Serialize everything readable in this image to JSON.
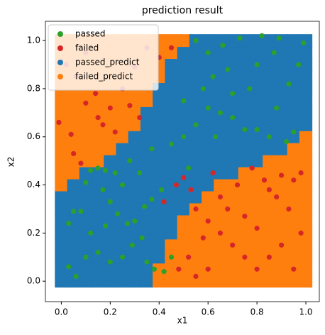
{
  "chart_data": {
    "type": "scatter",
    "title": "prediction result",
    "xlabel": "x1",
    "ylabel": "x2",
    "xlim": [
      -0.065,
      1.055
    ],
    "ylim": [
      -0.085,
      1.08
    ],
    "xticks": [
      {
        "value": 0,
        "label": "0.0"
      },
      0.2,
      0.4,
      0.6,
      0.8,
      {
        "value": 1,
        "label": "1.0"
      }
    ],
    "yticks": [
      {
        "value": 0,
        "label": "0.0"
      },
      0.2,
      0.4,
      0.6,
      0.8,
      {
        "value": 1,
        "label": "1.0"
      }
    ],
    "legend": "upper left",
    "series": [
      {
        "name": "passed",
        "color": "#2ca02c",
        "x": [
          0.03,
          0.05,
          0.08,
          0.03,
          0.1,
          0.12,
          0.15,
          0.18,
          0.22,
          0.25,
          0.17,
          0.2,
          0.23,
          0.27,
          0.3,
          0.34,
          0.37,
          0.33,
          0.29,
          0.25,
          0.2,
          0.15,
          0.1,
          0.06,
          0.12,
          0.18,
          0.35,
          0.38,
          0.42,
          0.45,
          0.41,
          0.32,
          0.28,
          0.37,
          0.45,
          0.5,
          0.55,
          0.6,
          0.65,
          0.7,
          0.75,
          0.8,
          0.85,
          0.92,
          0.95,
          0.88,
          0.93,
          0.97,
          0.8,
          0.73,
          0.82,
          0.89,
          0.6,
          0.55,
          0.62,
          0.68,
          0.7,
          0.77,
          0.5,
          0.58,
          0.63,
          0.52,
          0.87,
          0.66,
          0.99
        ],
        "y": [
          0.06,
          0.29,
          0.29,
          0.24,
          0.41,
          0.46,
          0.47,
          0.46,
          0.45,
          0.4,
          0.38,
          0.33,
          0.28,
          0.24,
          0.25,
          0.31,
          0.34,
          0.18,
          0.15,
          0.1,
          0.08,
          0.12,
          0.1,
          0.02,
          0.2,
          0.23,
          0.08,
          0.05,
          0.04,
          0.1,
          0.38,
          0.45,
          0.5,
          0.55,
          0.57,
          0.6,
          0.65,
          0.72,
          0.7,
          0.68,
          0.63,
          0.63,
          0.6,
          0.58,
          0.62,
          0.72,
          0.82,
          0.9,
          0.9,
          1.01,
          1.02,
          1.01,
          0.95,
          1.0,
          0.85,
          0.88,
          0.78,
          0.8,
          0.75,
          0.8,
          0.6,
          0.47,
          0.95,
          0.98,
          0.99
        ]
      },
      {
        "name": "failed",
        "color": "#d62728",
        "x": [
          -0.01,
          0.04,
          0.05,
          0.08,
          0.02,
          0.06,
          0.1,
          0.15,
          0.17,
          0.2,
          0.25,
          0.3,
          0.35,
          0.4,
          0.45,
          0.32,
          0.14,
          0.22,
          0.28,
          0.1,
          0.47,
          0.5,
          0.53,
          0.55,
          0.6,
          0.65,
          0.7,
          0.75,
          0.8,
          0.85,
          0.9,
          0.95,
          0.98,
          0.93,
          0.88,
          0.83,
          0.78,
          0.72,
          0.68,
          0.62,
          0.58,
          0.52,
          0.48,
          0.55,
          0.98,
          0.95,
          0.9,
          0.85,
          0.6,
          0.65,
          0.75,
          0.8,
          0.42
        ],
        "y": [
          0.66,
          0.61,
          0.53,
          0.49,
          0.9,
          0.85,
          0.95,
          0.68,
          0.65,
          0.72,
          0.8,
          0.89,
          0.97,
          0.93,
          0.97,
          0.68,
          0.78,
          0.62,
          0.73,
          0.74,
          0.4,
          0.43,
          0.38,
          0.3,
          0.25,
          0.2,
          0.15,
          0.1,
          0.05,
          0.1,
          0.15,
          0.05,
          0.2,
          0.3,
          0.35,
          0.42,
          0.47,
          0.4,
          0.3,
          0.45,
          0.18,
          0.1,
          0.05,
          0.02,
          0.45,
          0.42,
          0.44,
          0.38,
          0.05,
          0.35,
          0.27,
          0.22,
          0.33
        ]
      },
      {
        "name": "passed_predict",
        "color": "#1f77b4"
      },
      {
        "name": "failed_predict",
        "color": "#ff7f0e"
      }
    ],
    "region": {
      "x": [
        0,
        0.05,
        0.1,
        0.15,
        0.2,
        0.25,
        0.3,
        0.35,
        0.4,
        0.45,
        0.5,
        0.55,
        0.6,
        0.65,
        0.7,
        0.75,
        0.8,
        0.85,
        0.9,
        0.95,
        1
      ],
      "y": [
        0,
        0.05,
        0.1,
        0.15,
        0.2,
        0.25,
        0.3,
        0.35,
        0.4,
        0.45,
        0.5,
        0.55,
        0.6,
        0.65,
        0.7,
        0.75,
        0.8,
        0.85,
        0.9,
        0.95,
        1
      ],
      "class": [
        [
          2,
          2,
          2,
          2,
          2,
          2,
          2,
          2,
          3,
          3,
          3,
          3,
          3,
          3,
          3,
          3,
          3,
          3,
          3,
          3,
          3
        ],
        [
          2,
          2,
          2,
          2,
          2,
          2,
          2,
          2,
          3,
          3,
          3,
          3,
          3,
          3,
          3,
          3,
          3,
          3,
          3,
          3,
          3
        ],
        [
          2,
          2,
          2,
          2,
          2,
          2,
          2,
          2,
          2,
          3,
          3,
          3,
          3,
          3,
          3,
          3,
          3,
          3,
          3,
          3,
          3
        ],
        [
          2,
          2,
          2,
          2,
          2,
          2,
          2,
          2,
          2,
          3,
          3,
          3,
          3,
          3,
          3,
          3,
          3,
          3,
          3,
          3,
          3
        ],
        [
          2,
          2,
          2,
          2,
          2,
          2,
          2,
          2,
          2,
          2,
          3,
          3,
          3,
          3,
          3,
          3,
          3,
          3,
          3,
          3,
          3
        ],
        [
          2,
          2,
          2,
          2,
          2,
          2,
          2,
          2,
          2,
          2,
          3,
          3,
          3,
          3,
          3,
          3,
          3,
          3,
          3,
          3,
          3
        ],
        [
          2,
          2,
          2,
          2,
          2,
          2,
          2,
          2,
          2,
          2,
          2,
          3,
          3,
          3,
          3,
          3,
          3,
          3,
          3,
          3,
          3
        ],
        [
          2,
          2,
          2,
          2,
          2,
          2,
          2,
          2,
          2,
          2,
          2,
          2,
          3,
          3,
          3,
          3,
          3,
          3,
          3,
          3,
          3
        ],
        [
          3,
          2,
          2,
          2,
          2,
          2,
          2,
          2,
          2,
          2,
          2,
          2,
          2,
          3,
          3,
          3,
          3,
          3,
          3,
          3,
          3
        ],
        [
          3,
          3,
          2,
          2,
          2,
          2,
          2,
          2,
          2,
          2,
          2,
          2,
          2,
          2,
          2,
          3,
          3,
          3,
          3,
          3,
          3
        ],
        [
          3,
          3,
          3,
          3,
          2,
          2,
          2,
          2,
          2,
          2,
          2,
          2,
          2,
          2,
          2,
          2,
          2,
          3,
          3,
          3,
          3
        ],
        [
          3,
          3,
          3,
          3,
          3,
          2,
          2,
          2,
          2,
          2,
          2,
          2,
          2,
          2,
          2,
          2,
          2,
          2,
          2,
          3,
          3
        ],
        [
          3,
          3,
          3,
          3,
          3,
          3,
          2,
          2,
          2,
          2,
          2,
          2,
          2,
          2,
          2,
          2,
          2,
          2,
          2,
          2,
          3
        ],
        [
          3,
          3,
          3,
          3,
          3,
          3,
          3,
          2,
          2,
          2,
          2,
          2,
          2,
          2,
          2,
          2,
          2,
          2,
          2,
          2,
          2
        ],
        [
          3,
          3,
          3,
          3,
          3,
          3,
          3,
          2,
          2,
          2,
          2,
          2,
          2,
          2,
          2,
          2,
          2,
          2,
          2,
          2,
          2
        ],
        [
          3,
          3,
          3,
          3,
          3,
          3,
          3,
          3,
          2,
          2,
          2,
          2,
          2,
          2,
          2,
          2,
          2,
          2,
          2,
          2,
          2
        ],
        [
          3,
          3,
          3,
          3,
          3,
          3,
          3,
          3,
          2,
          2,
          2,
          2,
          2,
          2,
          2,
          2,
          2,
          2,
          2,
          2,
          2
        ],
        [
          3,
          3,
          3,
          3,
          3,
          3,
          3,
          3,
          3,
          2,
          2,
          2,
          2,
          2,
          2,
          2,
          2,
          2,
          2,
          2,
          2
        ],
        [
          3,
          3,
          3,
          3,
          3,
          3,
          3,
          3,
          3,
          2,
          2,
          2,
          2,
          2,
          2,
          2,
          2,
          2,
          2,
          2,
          2
        ],
        [
          3,
          3,
          3,
          3,
          3,
          3,
          3,
          3,
          3,
          3,
          2,
          2,
          2,
          2,
          2,
          2,
          2,
          2,
          2,
          2,
          2
        ],
        [
          3,
          3,
          3,
          3,
          3,
          3,
          3,
          3,
          3,
          3,
          3,
          2,
          2,
          2,
          2,
          2,
          2,
          2,
          2,
          2,
          2
        ]
      ]
    }
  }
}
